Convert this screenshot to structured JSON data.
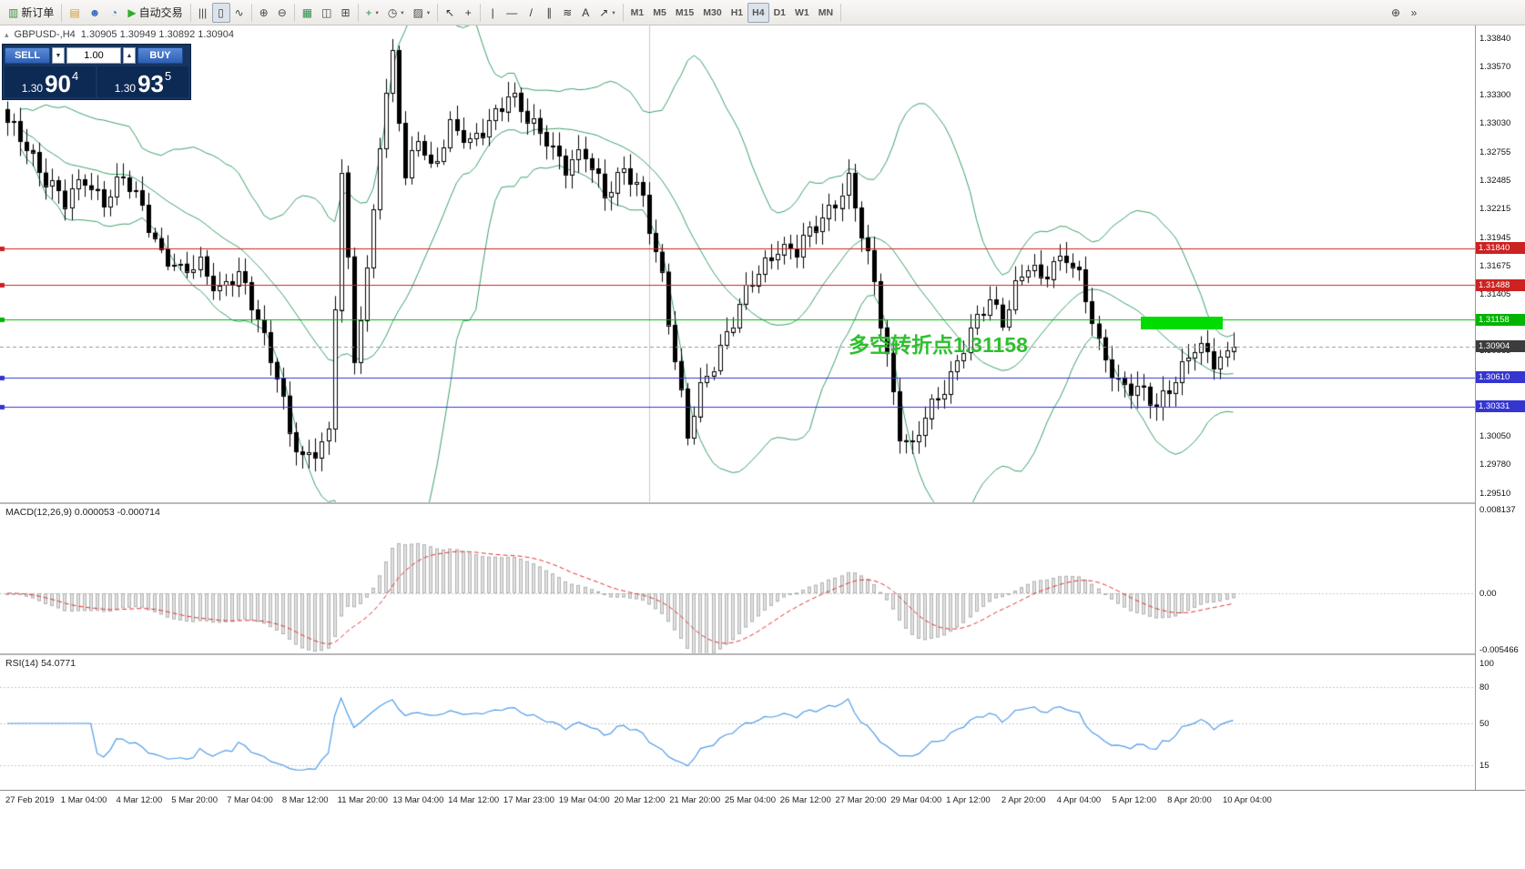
{
  "toolbar": {
    "caret_glyph": "▾",
    "groups": [
      {
        "items": [
          {
            "name": "new-order",
            "glyph": "▥",
            "glyph_color": "#3c8c3c",
            "label": "新订单"
          }
        ]
      },
      {
        "items": [
          {
            "name": "metaeditor",
            "glyph": "▤",
            "glyph_color": "#d29a2e"
          },
          {
            "name": "profile",
            "glyph": "☻",
            "glyph_color": "#3a6fc0"
          },
          {
            "name": "data-window",
            "glyph": "◔",
            "glyph_color": "#3a6fc0"
          },
          {
            "name": "autotrading",
            "glyph": "▶",
            "glyph_color": "#2faf2f",
            "label": "自动交易"
          }
        ]
      },
      {
        "items": [
          {
            "name": "chart-bars",
            "glyph": "|||",
            "glyph_color": "#444"
          },
          {
            "name": "chart-candles",
            "glyph": "▯",
            "glyph_color": "#444",
            "active": true
          },
          {
            "name": "chart-line",
            "glyph": "∿",
            "glyph_color": "#444"
          }
        ]
      },
      {
        "items": [
          {
            "name": "zoom-in",
            "glyph": "⊕",
            "glyph_color": "#444"
          },
          {
            "name": "zoom-out",
            "glyph": "⊖",
            "glyph_color": "#444"
          }
        ]
      },
      {
        "items": [
          {
            "name": "grid",
            "glyph": "▦",
            "glyph_color": "#2f8f4f"
          },
          {
            "name": "tile-windows",
            "glyph": "◫",
            "glyph_color": "#444"
          },
          {
            "name": "cascade-windows",
            "glyph": "⊞",
            "glyph_color": "#444"
          }
        ]
      },
      {
        "items": [
          {
            "name": "indicators",
            "glyph": "+",
            "glyph_color": "#2f8f4f",
            "caret": true
          },
          {
            "name": "periods",
            "glyph": "◷",
            "glyph_color": "#444",
            "caret": true
          },
          {
            "name": "templates",
            "glyph": "▨",
            "glyph_color": "#444",
            "caret": true
          }
        ]
      },
      {
        "items": [
          {
            "name": "cursor",
            "glyph": "↖",
            "glyph_color": "#333"
          },
          {
            "name": "crosshair",
            "glyph": "+",
            "glyph_color": "#333"
          }
        ]
      },
      {
        "items": [
          {
            "name": "vertical-line",
            "glyph": "|",
            "glyph_color": "#333"
          },
          {
            "name": "horizontal-line",
            "glyph": "—",
            "glyph_color": "#333"
          },
          {
            "name": "trendline",
            "glyph": "/",
            "glyph_color": "#333"
          },
          {
            "name": "channel",
            "glyph": "∥",
            "glyph_color": "#333"
          },
          {
            "name": "fibonacci",
            "glyph": "≋",
            "glyph_color": "#333"
          },
          {
            "name": "text",
            "glyph": "A",
            "glyph_color": "#333"
          },
          {
            "name": "arrows",
            "glyph": "↗",
            "glyph_color": "#333",
            "caret": true
          }
        ]
      },
      {
        "tf": true,
        "items": [
          {
            "name": "timeframe-m1",
            "label": "M1"
          },
          {
            "name": "timeframe-m5",
            "label": "M5"
          },
          {
            "name": "timeframe-m15",
            "label": "M15"
          },
          {
            "name": "timeframe-m30",
            "label": "M30"
          },
          {
            "name": "timeframe-h1",
            "label": "H1"
          },
          {
            "name": "timeframe-h4",
            "label": "H4",
            "active": true
          },
          {
            "name": "timeframe-d1",
            "label": "D1"
          },
          {
            "name": "timeframe-w1",
            "label": "W1"
          },
          {
            "name": "timeframe-mn",
            "label": "MN"
          }
        ]
      },
      {
        "push_right": true,
        "items": [
          {
            "name": "zoom-chart",
            "glyph": "⊕",
            "glyph_color": "#444"
          },
          {
            "name": "toolbar-overflow",
            "glyph": "»",
            "glyph_color": "#444"
          }
        ]
      }
    ]
  },
  "chart_header": {
    "collapse_glyph": "▴",
    "title": "GBPUSD-,H4",
    "ohlc": "1.30905 1.30949 1.30892 1.30904"
  },
  "trade_panel": {
    "sell_label": "SELL",
    "buy_label": "BUY",
    "volume": "1.00",
    "stepper_down": "▼",
    "stepper_up": "▲",
    "sell_price": {
      "big": "1.30",
      "pips": "90",
      "point": "4"
    },
    "buy_price": {
      "big": "1.30",
      "pips": "93",
      "point": "5"
    }
  },
  "macd_panel": {
    "label": "MACD(12,26,9) 0.000053 -0.000714"
  },
  "rsi_panel": {
    "label": "RSI(14) 54.0771"
  },
  "chart_data": {
    "type": "candlestick",
    "symbol": "GBPUSD-",
    "timeframe": "H4",
    "display_ohlc": {
      "open": 1.30905,
      "high": 1.30949,
      "low": 1.30892,
      "close": 1.30904
    },
    "current_price": 1.30904,
    "current_price_badge": {
      "label": "1.30904",
      "color": "#3c3c3c"
    },
    "price_axis_ticks": [
      "1.33840",
      "1.33570",
      "1.33300",
      "1.33030",
      "1.32755",
      "1.32485",
      "1.32215",
      "1.31945",
      "1.31675",
      "1.31405",
      "1.31135",
      "1.30865",
      "1.30595",
      "1.30325",
      "1.30050",
      "1.29780",
      "1.29510"
    ],
    "horizontal_levels": [
      {
        "price": 1.3184,
        "label": "1.31840",
        "color": "#cc2222"
      },
      {
        "price": 1.31488,
        "label": "1.31488",
        "color": "#cc2222"
      },
      {
        "price": 1.31158,
        "label": "1.31158",
        "color": "#00b400"
      },
      {
        "price": 1.3061,
        "label": "1.30610",
        "color": "#3535d0"
      },
      {
        "price": 1.30331,
        "label": "1.30331",
        "color": "#3535d0"
      }
    ],
    "vertical_line": {
      "index": 100,
      "color": "#c8c8c8"
    },
    "n_candles": 192,
    "close_waypoints": [
      [
        0,
        1.33
      ],
      [
        3,
        1.3282
      ],
      [
        6,
        1.3252
      ],
      [
        9,
        1.3225
      ],
      [
        12,
        1.3252
      ],
      [
        15,
        1.323
      ],
      [
        18,
        1.3248
      ],
      [
        21,
        1.3225
      ],
      [
        24,
        1.318
      ],
      [
        27,
        1.3158
      ],
      [
        30,
        1.3172
      ],
      [
        33,
        1.3145
      ],
      [
        36,
        1.3155
      ],
      [
        39,
        1.312
      ],
      [
        42,
        1.3065
      ],
      [
        44,
        1.3005
      ],
      [
        46,
        1.298
      ],
      [
        48,
        1.2995
      ],
      [
        50,
        1.301
      ],
      [
        52,
        1.3255
      ],
      [
        54,
        1.3075
      ],
      [
        56,
        1.316
      ],
      [
        58,
        1.329
      ],
      [
        60,
        1.337
      ],
      [
        62,
        1.3245
      ],
      [
        64,
        1.329
      ],
      [
        66,
        1.3262
      ],
      [
        69,
        1.33
      ],
      [
        72,
        1.328
      ],
      [
        75,
        1.3308
      ],
      [
        78,
        1.333
      ],
      [
        81,
        1.3305
      ],
      [
        84,
        1.3292
      ],
      [
        87,
        1.326
      ],
      [
        90,
        1.3272
      ],
      [
        93,
        1.324
      ],
      [
        96,
        1.3258
      ],
      [
        99,
        1.3228
      ],
      [
        102,
        1.316
      ],
      [
        104,
        1.308
      ],
      [
        106,
        1.3002
      ],
      [
        108,
        1.3048
      ],
      [
        111,
        1.3092
      ],
      [
        114,
        1.3128
      ],
      [
        117,
        1.316
      ],
      [
        120,
        1.3188
      ],
      [
        123,
        1.318
      ],
      [
        126,
        1.3205
      ],
      [
        129,
        1.3232
      ],
      [
        131,
        1.3248
      ],
      [
        133,
        1.3195
      ],
      [
        135,
        1.315
      ],
      [
        137,
        1.3085
      ],
      [
        139,
        1.301
      ],
      [
        141,
        1.299
      ],
      [
        143,
        1.3022
      ],
      [
        145,
        1.3045
      ],
      [
        147,
        1.3065
      ],
      [
        149,
        1.309
      ],
      [
        151,
        1.3112
      ],
      [
        153,
        1.3135
      ],
      [
        155,
        1.3118
      ],
      [
        157,
        1.3148
      ],
      [
        159,
        1.3165
      ],
      [
        161,
        1.3152
      ],
      [
        163,
        1.3172
      ],
      [
        165,
        1.318
      ],
      [
        167,
        1.3155
      ],
      [
        170,
        1.309
      ],
      [
        173,
        1.306
      ],
      [
        176,
        1.3048
      ],
      [
        179,
        1.3032
      ],
      [
        182,
        1.3065
      ],
      [
        185,
        1.3088
      ],
      [
        188,
        1.3075
      ],
      [
        190,
        1.3085
      ],
      [
        191,
        1.30904
      ]
    ],
    "bollinger": {
      "period": 20,
      "deviation": 2,
      "color": "#3aa06a"
    },
    "macd": {
      "fast": 12,
      "slow": 26,
      "signal_period": 9,
      "value": 5.3e-05,
      "signal_value": -0.000714,
      "histogram_color": "#e2e2e2",
      "histogram_border": "#b2b2b2",
      "signal_color": "#e03030",
      "axis_ticks": [
        {
          "label": "0.008137",
          "value": 0.008137
        },
        {
          "label": "0.00",
          "value": 0
        },
        {
          "label": "-0.005466",
          "value": -0.005466
        }
      ]
    },
    "rsi": {
      "period": 14,
      "value": 54.0771,
      "color": "#4f9be8",
      "levels": [
        80,
        50,
        15
      ],
      "axis_ticks": [
        {
          "label": "100",
          "value": 100
        },
        {
          "label": "80",
          "value": 80
        },
        {
          "label": "50",
          "value": 50
        },
        {
          "label": "15",
          "value": 15
        }
      ]
    },
    "time_labels": [
      "27 Feb 2019",
      "1 Mar 04:00",
      "4 Mar 12:00",
      "5 Mar 20:00",
      "7 Mar 04:00",
      "8 Mar 12:00",
      "11 Mar 20:00",
      "13 Mar 04:00",
      "14 Mar 12:00",
      "17 Mar 23:00",
      "19 Mar 04:00",
      "20 Mar 12:00",
      "21 Mar 20:00",
      "25 Mar 04:00",
      "26 Mar 12:00",
      "27 Mar 20:00",
      "29 Mar 04:00",
      "1 Apr 12:00",
      "2 Apr 20:00",
      "4 Apr 04:00",
      "5 Apr 12:00",
      "8 Apr 20:00",
      "10 Apr 04:00"
    ],
    "highlight_rect": {
      "start_index": 177,
      "end_index": 189,
      "price_top": 1.3119,
      "price_bottom": 1.3107,
      "color": "#00dc00"
    },
    "annotation": {
      "text": "多空转折点1.31158",
      "color": "#2fbf2f"
    }
  }
}
